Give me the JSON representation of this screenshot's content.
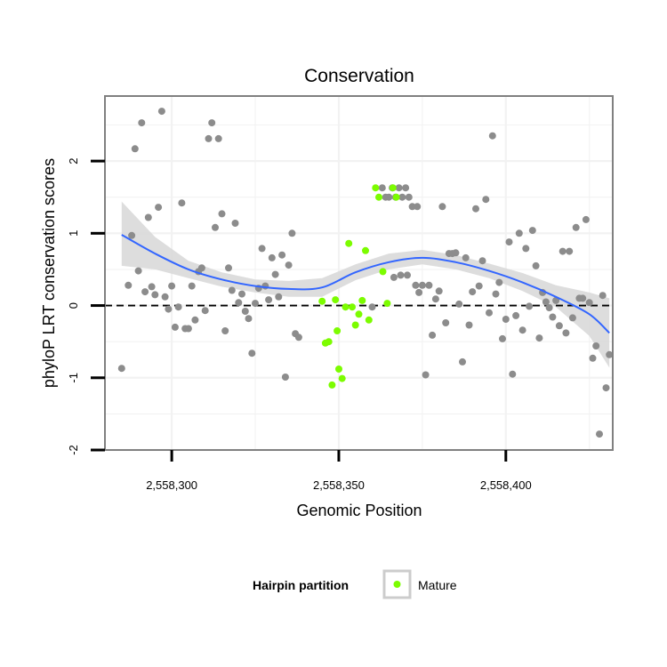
{
  "chart_data": {
    "type": "scatter",
    "title": "Conservation",
    "xlabel": "Genomic Position",
    "ylabel": "phyloP LRT conservation scores",
    "xlim": [
      2558280,
      2558432
    ],
    "ylim": [
      -2,
      2.9
    ],
    "x_ticks": [
      2558300,
      2558350,
      2558400
    ],
    "x_tick_labels": [
      "2,558,300",
      "2,558,350",
      "2,558,400"
    ],
    "y_ticks": [
      -2,
      -1,
      0,
      1,
      2
    ],
    "y_tick_labels": [
      "-2",
      "-1",
      "0",
      "1",
      "2"
    ],
    "grid": true,
    "reference_line": {
      "y": 0,
      "style": "dashed",
      "color": "#000000"
    },
    "legend": {
      "title": "Hairpin partition",
      "position": "bottom",
      "entries": [
        {
          "label": "Mature",
          "color": "#7cfc00"
        }
      ]
    },
    "colors": {
      "other": "#8c8c8c",
      "mature": "#7cfc00",
      "smooth": "#3366ff",
      "band": "#d9d9d9"
    },
    "series": [
      {
        "group": "other",
        "points": [
          [
            2558285,
            -0.87
          ],
          [
            2558287,
            0.28
          ],
          [
            2558288,
            0.97
          ],
          [
            2558289,
            2.17
          ],
          [
            2558290,
            0.48
          ],
          [
            2558291,
            2.53
          ],
          [
            2558292,
            0.19
          ],
          [
            2558293,
            1.22
          ],
          [
            2558294,
            0.26
          ],
          [
            2558295,
            0.15
          ],
          [
            2558296,
            1.36
          ],
          [
            2558297,
            2.69
          ],
          [
            2558298,
            0.12
          ],
          [
            2558299,
            -0.05
          ],
          [
            2558300,
            0.27
          ],
          [
            2558301,
            -0.3
          ],
          [
            2558302,
            -0.02
          ],
          [
            2558303,
            1.42
          ],
          [
            2558304,
            -0.32
          ],
          [
            2558305,
            -0.32
          ],
          [
            2558306,
            0.27
          ],
          [
            2558307,
            -0.2
          ],
          [
            2558308,
            0.47
          ],
          [
            2558309,
            0.52
          ],
          [
            2558310,
            -0.07
          ],
          [
            2558311,
            2.31
          ],
          [
            2558312,
            2.53
          ],
          [
            2558313,
            1.08
          ],
          [
            2558314,
            2.31
          ],
          [
            2558315,
            1.27
          ],
          [
            2558316,
            -0.35
          ],
          [
            2558317,
            0.52
          ],
          [
            2558318,
            0.21
          ],
          [
            2558319,
            1.14
          ],
          [
            2558320,
            0.04
          ],
          [
            2558321,
            0.16
          ],
          [
            2558322,
            -0.08
          ],
          [
            2558323,
            -0.18
          ],
          [
            2558324,
            -0.66
          ],
          [
            2558325,
            0.03
          ],
          [
            2558326,
            0.24
          ],
          [
            2558327,
            0.79
          ],
          [
            2558328,
            0.27
          ],
          [
            2558329,
            0.08
          ],
          [
            2558330,
            0.66
          ],
          [
            2558331,
            0.43
          ],
          [
            2558332,
            0.12
          ],
          [
            2558333,
            0.7
          ],
          [
            2558334,
            -0.99
          ],
          [
            2558335,
            0.56
          ],
          [
            2558336,
            1.0
          ],
          [
            2558337,
            -0.39
          ],
          [
            2558338,
            -0.44
          ],
          [
            2558360,
            -0.02
          ],
          [
            2558363,
            1.63
          ],
          [
            2558364,
            1.5
          ],
          [
            2558365,
            1.5
          ],
          [
            2558366,
            1.63
          ],
          [
            2558366.5,
            0.39
          ],
          [
            2558367,
            1.5
          ],
          [
            2558368,
            1.63
          ],
          [
            2558368.5,
            0.42
          ],
          [
            2558369,
            1.5
          ],
          [
            2558370,
            1.63
          ],
          [
            2558370.5,
            0.42
          ],
          [
            2558371,
            1.5
          ],
          [
            2558372,
            1.37
          ],
          [
            2558373,
            0.28
          ],
          [
            2558373.5,
            1.37
          ],
          [
            2558374,
            0.18
          ],
          [
            2558375,
            0.28
          ],
          [
            2558376,
            -0.96
          ],
          [
            2558377,
            0.28
          ],
          [
            2558378,
            -0.41
          ],
          [
            2558379,
            0.09
          ],
          [
            2558380,
            0.2
          ],
          [
            2558381,
            1.37
          ],
          [
            2558382,
            -0.24
          ],
          [
            2558383,
            0.72
          ],
          [
            2558384,
            0.72
          ],
          [
            2558385,
            0.73
          ],
          [
            2558386,
            0.02
          ],
          [
            2558387,
            -0.78
          ],
          [
            2558388,
            0.66
          ],
          [
            2558389,
            -0.27
          ],
          [
            2558390,
            0.19
          ],
          [
            2558391,
            1.34
          ],
          [
            2558392,
            0.27
          ],
          [
            2558393,
            0.62
          ],
          [
            2558394,
            1.47
          ],
          [
            2558395,
            -0.1
          ],
          [
            2558396,
            2.35
          ],
          [
            2558397,
            0.16
          ],
          [
            2558398,
            0.32
          ],
          [
            2558399,
            -0.46
          ],
          [
            2558400,
            -0.19
          ],
          [
            2558401,
            0.88
          ],
          [
            2558402,
            -0.95
          ],
          [
            2558403,
            -0.14
          ],
          [
            2558404,
            1.0
          ],
          [
            2558405,
            -0.34
          ],
          [
            2558406,
            0.79
          ],
          [
            2558407,
            -0.01
          ],
          [
            2558408,
            1.04
          ],
          [
            2558409,
            0.55
          ],
          [
            2558410,
            -0.45
          ],
          [
            2558411,
            0.18
          ],
          [
            2558412,
            0.05
          ],
          [
            2558413,
            -0.03
          ],
          [
            2558414,
            -0.16
          ],
          [
            2558415,
            0.07
          ],
          [
            2558416,
            -0.28
          ],
          [
            2558417,
            0.75
          ],
          [
            2558418,
            -0.38
          ],
          [
            2558419,
            0.75
          ],
          [
            2558420,
            -0.17
          ],
          [
            2558421,
            1.08
          ],
          [
            2558422,
            0.1
          ],
          [
            2558423,
            0.1
          ],
          [
            2558424,
            1.19
          ],
          [
            2558425,
            0.04
          ],
          [
            2558426,
            -0.73
          ],
          [
            2558427,
            -0.56
          ],
          [
            2558428,
            -1.78
          ],
          [
            2558429,
            0.14
          ],
          [
            2558430,
            -1.14
          ],
          [
            2558431,
            -0.68
          ]
        ]
      },
      {
        "group": "mature",
        "points": [
          [
            2558345,
            0.06
          ],
          [
            2558346,
            -0.52
          ],
          [
            2558347,
            -0.5
          ],
          [
            2558348,
            -1.1
          ],
          [
            2558349,
            0.08
          ],
          [
            2558349.5,
            -0.35
          ],
          [
            2558350,
            -0.88
          ],
          [
            2558351,
            -1.01
          ],
          [
            2558352,
            -0.02
          ],
          [
            2558353,
            0.86
          ],
          [
            2558354,
            -0.02
          ],
          [
            2558355,
            -0.27
          ],
          [
            2558356,
            -0.12
          ],
          [
            2558357,
            0.07
          ],
          [
            2558358,
            0.76
          ],
          [
            2558359,
            -0.2
          ],
          [
            2558361,
            1.63
          ],
          [
            2558362,
            1.5
          ],
          [
            2558363.2,
            0.47
          ],
          [
            2558364.5,
            0.03
          ],
          [
            2558366.2,
            1.63
          ],
          [
            2558367.2,
            1.5
          ]
        ]
      }
    ],
    "smooth_fit": {
      "x": [
        2558285,
        2558295,
        2558305,
        2558315,
        2558325,
        2558335,
        2558345,
        2558355,
        2558365,
        2558375,
        2558385,
        2558395,
        2558405,
        2558415,
        2558425,
        2558431
      ],
      "y": [
        0.98,
        0.72,
        0.5,
        0.36,
        0.27,
        0.23,
        0.25,
        0.46,
        0.6,
        0.66,
        0.6,
        0.48,
        0.32,
        0.12,
        -0.12,
        -0.38
      ],
      "lower": [
        0.55,
        0.5,
        0.38,
        0.26,
        0.18,
        0.12,
        0.12,
        0.35,
        0.5,
        0.57,
        0.5,
        0.38,
        0.2,
        -0.02,
        -0.42,
        -0.86
      ],
      "upper": [
        1.44,
        0.95,
        0.62,
        0.46,
        0.36,
        0.34,
        0.38,
        0.57,
        0.72,
        0.77,
        0.7,
        0.58,
        0.45,
        0.28,
        0.18,
        0.1
      ]
    }
  }
}
